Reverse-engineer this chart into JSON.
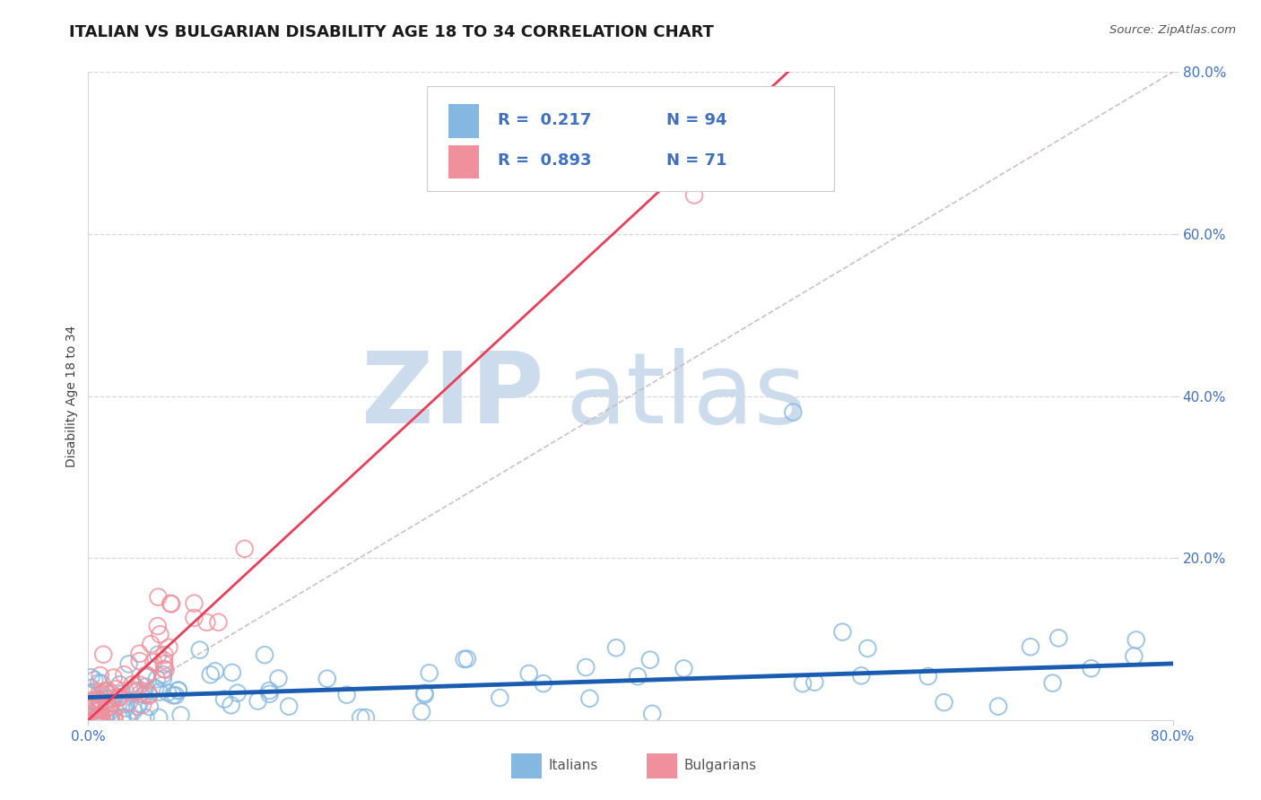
{
  "title": "ITALIAN VS BULGARIAN DISABILITY AGE 18 TO 34 CORRELATION CHART",
  "source": "Source: ZipAtlas.com",
  "ylabel": "Disability Age 18 to 34",
  "xlim": [
    0.0,
    0.8
  ],
  "ylim": [
    0.0,
    0.8
  ],
  "legend_R1": "R =  0.217",
  "legend_N1": "N = 94",
  "legend_R2": "R =  0.893",
  "legend_N2": "N = 71",
  "italian_color": "#85b8e0",
  "bulgarian_color": "#f0909c",
  "italian_line_color": "#1a5cb0",
  "bulgarian_line_color": "#e8405a",
  "ref_line_color": "#c8b8bc",
  "watermark_ZIP": "ZIP",
  "watermark_atlas": "atlas",
  "watermark_color": "#cddcec",
  "background_color": "#ffffff",
  "title_fontsize": 13,
  "axis_label_fontsize": 10,
  "tick_fontsize": 11,
  "tick_color": "#4070c0",
  "italian_slope": 0.052,
  "italian_intercept": 0.028,
  "bulgarian_slope": 1.55,
  "bulgarian_intercept": 0.0,
  "grid_color": "#d8d8d8"
}
